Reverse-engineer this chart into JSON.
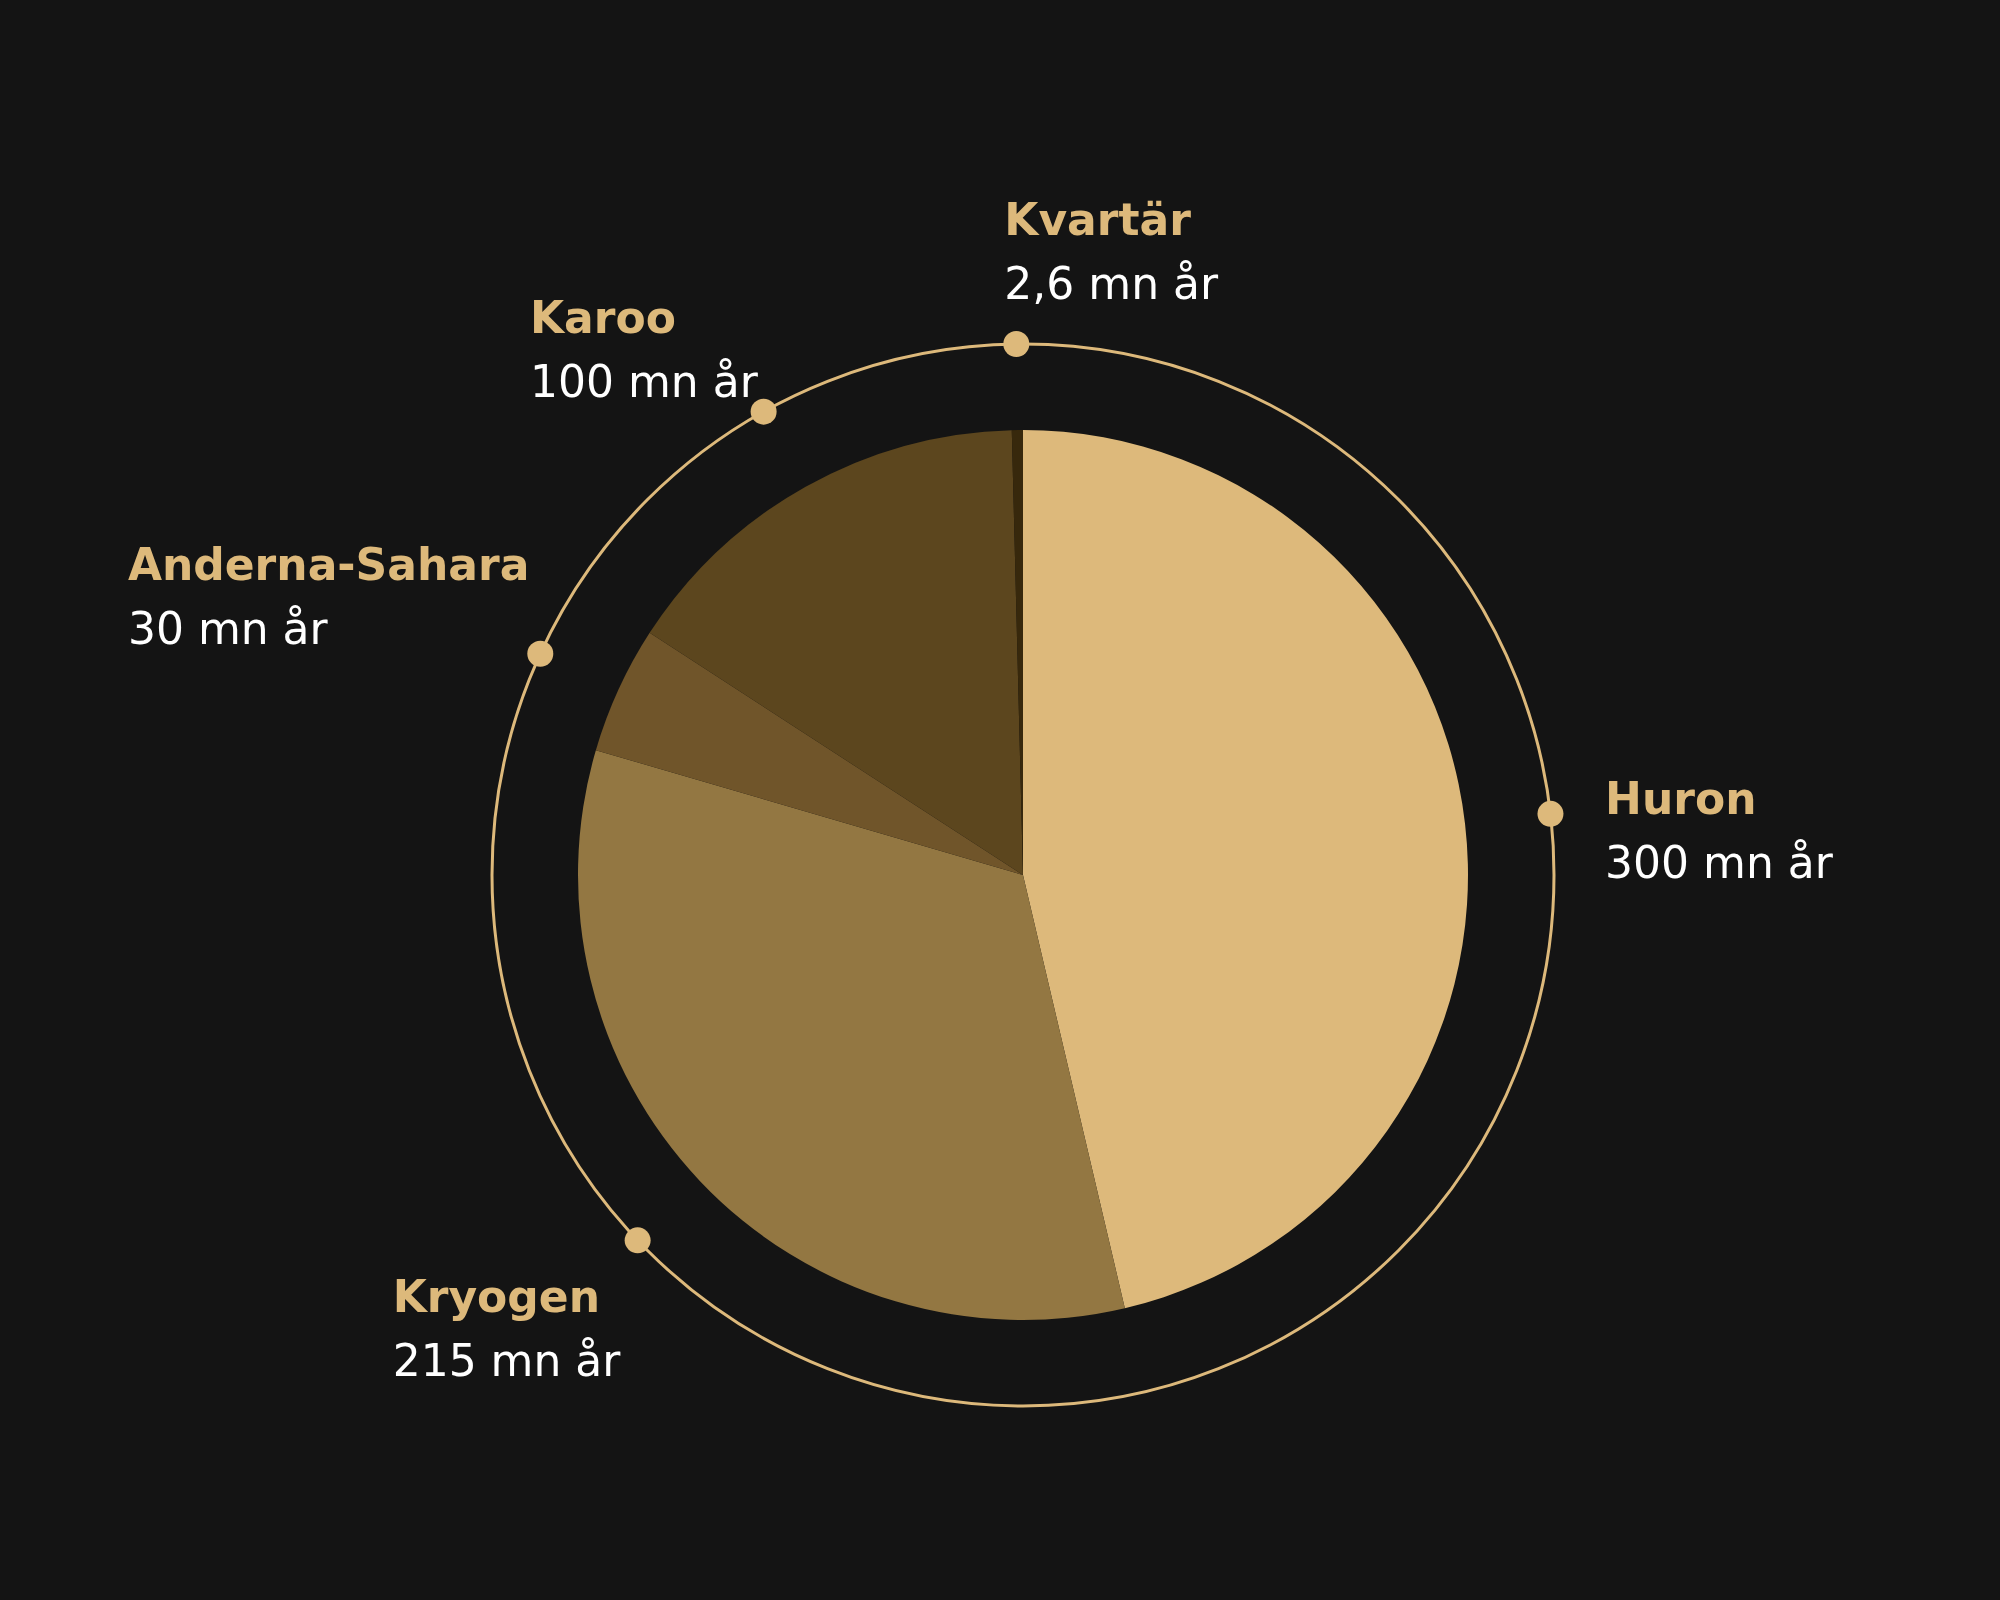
{
  "chart_data": {
    "type": "pie",
    "categories": [
      "Huron",
      "Kryogen",
      "Anderna-Sahara",
      "Karoo",
      "Kvartär"
    ],
    "values": [
      300,
      215,
      30,
      100,
      2.6
    ],
    "colors": [
      "#ddb97b",
      "#937742",
      "#70552a",
      "#5c461e",
      "#37280c"
    ],
    "value_labels": [
      "300 mn år",
      "215 mn år",
      "30 mn år",
      "100 mn år",
      "2,6 mn år"
    ]
  }
}
